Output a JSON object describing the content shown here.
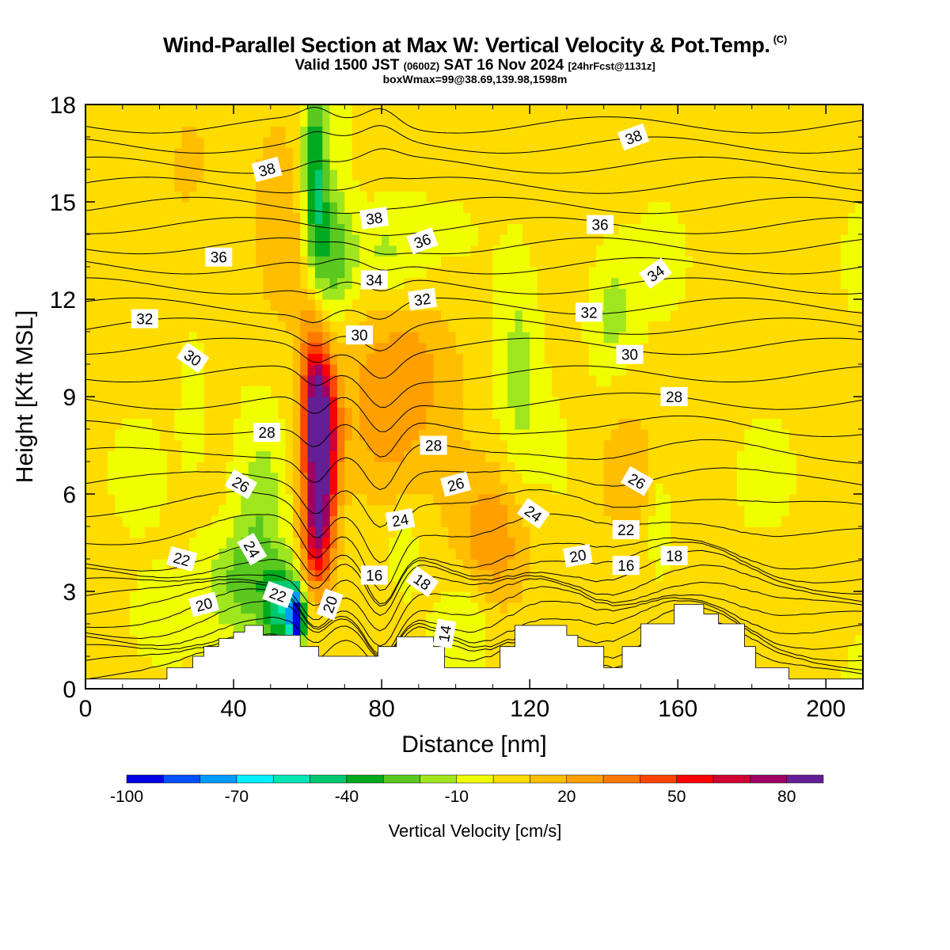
{
  "header": {
    "title": "Wind-Parallel Section at Max W: Vertical Velocity & Pot.Temp.",
    "copyright": "(C)",
    "valid_pre": "Valid 1500 JST",
    "valid_utc": "(0600Z)",
    "valid_post": "SAT 16 Nov 2024",
    "forecast": "[24hrFcst@1131z]",
    "boxinfo": "boxWmax=99@38.69,139.98,1598m"
  },
  "chart_data": {
    "type": "heatmap",
    "xlabel": "Distance [nm]",
    "ylabel": "Height [Kft MSL]",
    "xlim": [
      0,
      210
    ],
    "ylim": [
      0,
      18
    ],
    "xticks": [
      0,
      40,
      80,
      120,
      160,
      200
    ],
    "yticks": [
      0,
      3,
      6,
      9,
      12,
      15,
      18
    ],
    "colorbar": {
      "title": "Vertical Velocity [cm/s]",
      "ticks": [
        -100,
        -70,
        -40,
        -10,
        20,
        50,
        80
      ],
      "levels": [
        -100,
        -90,
        -80,
        -70,
        -60,
        -50,
        -40,
        -30,
        -20,
        -10,
        0,
        10,
        20,
        30,
        40,
        50,
        60,
        70,
        80,
        90
      ],
      "colors": [
        "#0000e6",
        "#0050ff",
        "#009bff",
        "#00f0ff",
        "#00e6b4",
        "#00c86e",
        "#00aa1e",
        "#5ac81e",
        "#a0e61e",
        "#f0ff00",
        "#ffdc00",
        "#ffbe00",
        "#ffa000",
        "#ff7800",
        "#ff4600",
        "#ff0000",
        "#d20032",
        "#a00064",
        "#641e96"
      ]
    },
    "terrain_kft": [
      [
        0,
        0.3
      ],
      [
        22,
        0.3
      ],
      [
        22,
        0.65
      ],
      [
        29,
        0.65
      ],
      [
        29,
        1.0
      ],
      [
        32,
        1.0
      ],
      [
        32,
        1.3
      ],
      [
        36,
        1.3
      ],
      [
        36,
        1.55
      ],
      [
        40,
        1.55
      ],
      [
        40,
        1.75
      ],
      [
        43,
        1.75
      ],
      [
        43,
        1.95
      ],
      [
        48,
        1.95
      ],
      [
        48,
        1.65
      ],
      [
        58,
        1.65
      ],
      [
        58,
        1.3
      ],
      [
        63,
        1.3
      ],
      [
        63,
        1.0
      ],
      [
        79,
        1.0
      ],
      [
        79,
        1.3
      ],
      [
        84,
        1.3
      ],
      [
        84,
        1.6
      ],
      [
        94,
        1.6
      ],
      [
        94,
        1.3
      ],
      [
        97,
        1.3
      ],
      [
        97,
        0.65
      ],
      [
        112,
        0.65
      ],
      [
        112,
        1.3
      ],
      [
        116,
        1.3
      ],
      [
        116,
        1.95
      ],
      [
        130,
        1.95
      ],
      [
        130,
        1.65
      ],
      [
        133,
        1.65
      ],
      [
        133,
        1.3
      ],
      [
        140,
        1.3
      ],
      [
        140,
        0.65
      ],
      [
        145,
        0.65
      ],
      [
        145,
        1.3
      ],
      [
        150,
        1.3
      ],
      [
        150,
        2.0
      ],
      [
        159,
        2.0
      ],
      [
        159,
        2.6
      ],
      [
        167,
        2.6
      ],
      [
        167,
        2.3
      ],
      [
        171,
        2.3
      ],
      [
        171,
        2.0
      ],
      [
        178,
        2.0
      ],
      [
        178,
        1.3
      ],
      [
        181,
        1.3
      ],
      [
        181,
        0.65
      ],
      [
        190,
        0.65
      ],
      [
        190,
        0.3
      ],
      [
        210,
        0.3
      ]
    ],
    "w_blobs_cms": [
      {
        "x": 63.5,
        "y": 7.2,
        "sx": 3.2,
        "sy": 1.7,
        "w": 85
      },
      {
        "x": 62.5,
        "y": 9.3,
        "sx": 3.0,
        "sy": 1.3,
        "w": 42
      },
      {
        "x": 60.5,
        "y": 11.2,
        "sx": 2.4,
        "sy": 1.2,
        "w": 14
      },
      {
        "x": 62.5,
        "y": 4.6,
        "sx": 3.0,
        "sy": 1.2,
        "w": 48
      },
      {
        "x": 80,
        "y": 8.2,
        "sx": 10,
        "sy": 2.0,
        "w": 22
      },
      {
        "x": 90,
        "y": 10.2,
        "sx": 10,
        "sy": 1.5,
        "w": 14
      },
      {
        "x": 110,
        "y": 4.6,
        "sx": 7,
        "sy": 1.6,
        "w": 26
      },
      {
        "x": 145,
        "y": 6.6,
        "sx": 6,
        "sy": 1.5,
        "w": 14
      },
      {
        "x": 52,
        "y": 14.2,
        "sx": 6,
        "sy": 2.4,
        "w": 17
      },
      {
        "x": 28,
        "y": 16.2,
        "sx": 4,
        "sy": 1.2,
        "w": 12
      },
      {
        "x": 62,
        "y": 15.8,
        "sx": 2.3,
        "sy": 2.3,
        "w": -45
      },
      {
        "x": 67,
        "y": 13.5,
        "sx": 3.5,
        "sy": 1.6,
        "w": -30
      },
      {
        "x": 80,
        "y": 13.4,
        "sx": 7,
        "sy": 1.0,
        "w": -16
      },
      {
        "x": 57,
        "y": 2.2,
        "sx": 1.4,
        "sy": 0.6,
        "w": -95
      },
      {
        "x": 53,
        "y": 2.6,
        "sx": 3.5,
        "sy": 0.9,
        "w": -48
      },
      {
        "x": 47,
        "y": 5.4,
        "sx": 5,
        "sy": 2.2,
        "w": -22
      },
      {
        "x": 40,
        "y": 3.3,
        "sx": 6,
        "sy": 1.1,
        "w": -20
      },
      {
        "x": 117,
        "y": 9.8,
        "sx": 4,
        "sy": 2.4,
        "w": -17
      },
      {
        "x": 142,
        "y": 11.5,
        "sx": 4,
        "sy": 1.2,
        "w": -17
      },
      {
        "x": 155,
        "y": 5.2,
        "sx": 1.8,
        "sy": 1.0,
        "w": -15
      },
      {
        "x": 103,
        "y": 2.3,
        "sx": 5,
        "sy": 1.0,
        "w": -12
      },
      {
        "x": 20,
        "y": 2.0,
        "sx": 5,
        "sy": 0.9,
        "w": -12
      },
      {
        "x": 29,
        "y": 8.7,
        "sx": 2,
        "sy": 1.2,
        "w": -11
      },
      {
        "x": 86,
        "y": 4.4,
        "sx": 3,
        "sy": 0.9,
        "w": -12
      }
    ],
    "theta_K": [
      12,
      13,
      14,
      15,
      16,
      17,
      18,
      19,
      20,
      21,
      22,
      23,
      24,
      25,
      26,
      27,
      28,
      29,
      30,
      31,
      32,
      33,
      34,
      35,
      36,
      37,
      38,
      39,
      40,
      41
    ],
    "contour_labels": [
      {
        "text": "38",
        "x": 49,
        "y": 16.0,
        "rot": -15
      },
      {
        "text": "38",
        "x": 78,
        "y": 14.5,
        "rot": -8
      },
      {
        "text": "38",
        "x": 148,
        "y": 17.0,
        "rot": -20
      },
      {
        "text": "36",
        "x": 36,
        "y": 13.3,
        "rot": 0
      },
      {
        "text": "36",
        "x": 91,
        "y": 13.8,
        "rot": -20
      },
      {
        "text": "36",
        "x": 139,
        "y": 14.3,
        "rot": 0
      },
      {
        "text": "34",
        "x": 78,
        "y": 12.6,
        "rot": 0
      },
      {
        "text": "34",
        "x": 154,
        "y": 12.8,
        "rot": -35
      },
      {
        "text": "32",
        "x": 16,
        "y": 11.4,
        "rot": 0
      },
      {
        "text": "32",
        "x": 91,
        "y": 12.0,
        "rot": -8
      },
      {
        "text": "32",
        "x": 136,
        "y": 11.6,
        "rot": 0
      },
      {
        "text": "30",
        "x": 29,
        "y": 10.2,
        "rot": 35
      },
      {
        "text": "30",
        "x": 74,
        "y": 10.9,
        "rot": 0
      },
      {
        "text": "30",
        "x": 147,
        "y": 10.3,
        "rot": 0
      },
      {
        "text": "28",
        "x": 49,
        "y": 7.9,
        "rot": 0
      },
      {
        "text": "28",
        "x": 94,
        "y": 7.5,
        "rot": 0
      },
      {
        "text": "28",
        "x": 159,
        "y": 9.0,
        "rot": 0
      },
      {
        "text": "26",
        "x": 42,
        "y": 6.3,
        "rot": 30
      },
      {
        "text": "26",
        "x": 100,
        "y": 6.3,
        "rot": -15
      },
      {
        "text": "26",
        "x": 149,
        "y": 6.4,
        "rot": 30
      },
      {
        "text": "24",
        "x": 45,
        "y": 4.3,
        "rot": 60
      },
      {
        "text": "24",
        "x": 85,
        "y": 5.2,
        "rot": -10
      },
      {
        "text": "24",
        "x": 121,
        "y": 5.4,
        "rot": 35
      },
      {
        "text": "22",
        "x": 26,
        "y": 4.0,
        "rot": 15
      },
      {
        "text": "22",
        "x": 52,
        "y": 2.9,
        "rot": 20
      },
      {
        "text": "22",
        "x": 146,
        "y": 4.9,
        "rot": 0
      },
      {
        "text": "20",
        "x": 32,
        "y": 2.6,
        "rot": -15
      },
      {
        "text": "20",
        "x": 66,
        "y": 2.6,
        "rot": -70
      },
      {
        "text": "20",
        "x": 133,
        "y": 4.1,
        "rot": -10
      },
      {
        "text": "18",
        "x": 91,
        "y": 3.3,
        "rot": 35
      },
      {
        "text": "18",
        "x": 159,
        "y": 4.1,
        "rot": 0
      },
      {
        "text": "16",
        "x": 78,
        "y": 3.5,
        "rot": 0
      },
      {
        "text": "16",
        "x": 146,
        "y": 3.8,
        "rot": 0
      },
      {
        "text": "14",
        "x": 97,
        "y": 1.7,
        "rot": -80
      }
    ]
  }
}
